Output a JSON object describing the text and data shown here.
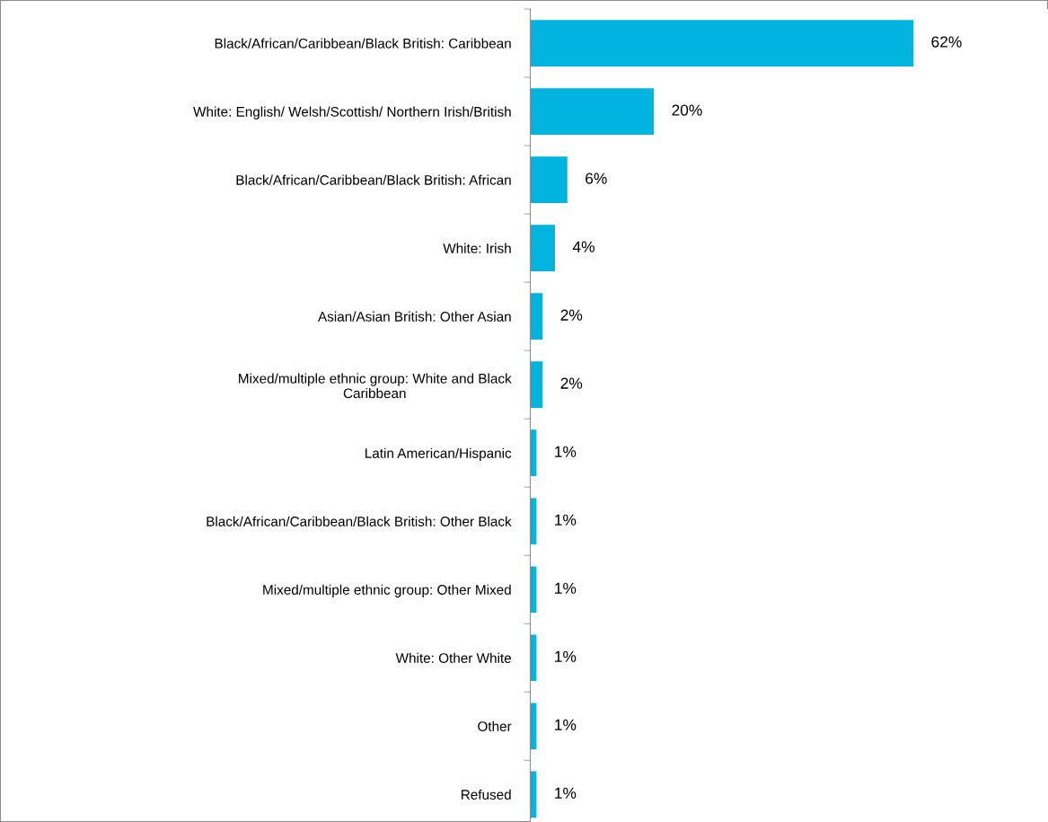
{
  "chart_data": {
    "type": "bar",
    "orientation": "horizontal",
    "categories": [
      "Black/African/Caribbean/Black British: Caribbean",
      "White: English/ Welsh/Scottish/ Northern Irish/British",
      "Black/African/Caribbean/Black British: African",
      "White: Irish",
      "Asian/Asian British: Other Asian",
      "Mixed/multiple ethnic group: White and Black\nCaribbean",
      "Latin American/Hispanic",
      "Black/African/Caribbean/Black British: Other Black",
      "Mixed/multiple ethnic group: Other Mixed",
      "White: Other White",
      "Other",
      "Refused"
    ],
    "values": [
      62,
      20,
      6,
      4,
      2,
      2,
      1,
      1,
      1,
      1,
      1,
      1
    ],
    "value_labels": [
      "62%",
      "20%",
      "6%",
      "4%",
      "2%",
      "2%",
      "1%",
      "1%",
      "1%",
      "1%",
      "1%",
      "1%"
    ],
    "color": "#00b4e0",
    "grid": false,
    "legend": false
  }
}
